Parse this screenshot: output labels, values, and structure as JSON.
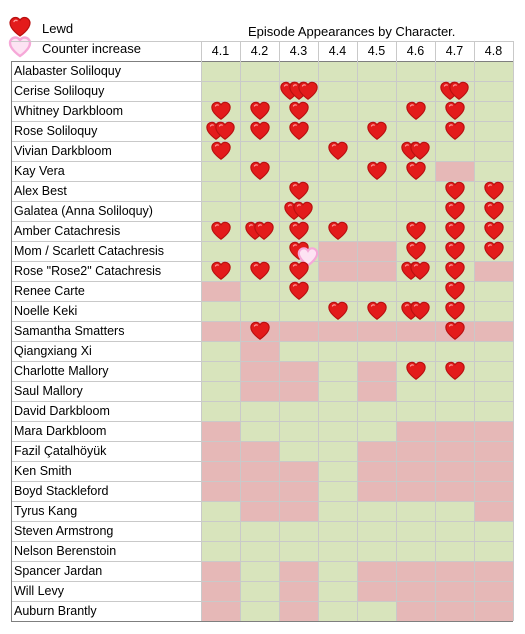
{
  "legend": {
    "items": [
      {
        "label": "Lewd",
        "icon": "red-heart-icon",
        "color": "#e31b1b"
      },
      {
        "label": "Counter increase",
        "icon": "pink-outline-heart-icon",
        "color": "#f6a8d8"
      }
    ]
  },
  "colors": {
    "appeared": "#d8e4bc",
    "absent": "#e6b8b7",
    "header_bg": "#ffffff"
  },
  "chart_data": {
    "type": "table",
    "title": "Episode Appearances by Character.",
    "columns": [
      "4.1",
      "4.2",
      "4.3",
      "4.4",
      "4.5",
      "4.6",
      "4.7",
      "4.8"
    ],
    "rows": [
      {
        "name": "Alabaster Soliloquy",
        "cells": [
          "G",
          "G",
          "G",
          "G",
          "G",
          "G",
          "G",
          "G"
        ],
        "hearts": [
          0,
          0,
          0,
          0,
          0,
          0,
          0,
          0
        ]
      },
      {
        "name": "Cerise Soliloquy",
        "cells": [
          "G",
          "G",
          "G",
          "G",
          "G",
          "G",
          "G",
          "G"
        ],
        "hearts": [
          0,
          0,
          3,
          0,
          0,
          0,
          2,
          0
        ]
      },
      {
        "name": "Whitney Darkbloom",
        "cells": [
          "G",
          "G",
          "G",
          "G",
          "G",
          "G",
          "G",
          "G"
        ],
        "hearts": [
          1,
          1,
          1,
          0,
          0,
          1,
          1,
          0
        ]
      },
      {
        "name": "Rose Soliloquy",
        "cells": [
          "G",
          "G",
          "G",
          "G",
          "G",
          "G",
          "G",
          "G"
        ],
        "hearts": [
          2,
          1,
          1,
          0,
          1,
          0,
          1,
          0
        ]
      },
      {
        "name": "Vivian Darkbloom",
        "cells": [
          "G",
          "G",
          "G",
          "G",
          "G",
          "G",
          "G",
          "G"
        ],
        "hearts": [
          1,
          0,
          0,
          1,
          0,
          2,
          0,
          0
        ]
      },
      {
        "name": "Kay Vera",
        "cells": [
          "G",
          "G",
          "G",
          "G",
          "G",
          "G",
          "R",
          "G"
        ],
        "hearts": [
          0,
          1,
          0,
          0,
          1,
          1,
          0,
          0
        ]
      },
      {
        "name": "Alex Best",
        "cells": [
          "G",
          "G",
          "G",
          "G",
          "G",
          "G",
          "G",
          "G"
        ],
        "hearts": [
          0,
          0,
          1,
          0,
          0,
          0,
          1,
          1
        ]
      },
      {
        "name": "Galatea (Anna Soliloquy)",
        "cells": [
          "G",
          "G",
          "G",
          "G",
          "G",
          "G",
          "G",
          "G"
        ],
        "hearts": [
          0,
          0,
          2,
          0,
          0,
          0,
          1,
          1
        ]
      },
      {
        "name": "Amber Catachresis",
        "cells": [
          "G",
          "G",
          "G",
          "G",
          "G",
          "G",
          "G",
          "G"
        ],
        "hearts": [
          1,
          2,
          1,
          1,
          0,
          1,
          1,
          1
        ]
      },
      {
        "name": "Mom / Scarlett Catachresis",
        "cells": [
          "G",
          "G",
          "G",
          "R",
          "R",
          "G",
          "G",
          "G"
        ],
        "hearts": [
          0,
          0,
          1,
          0,
          0,
          1,
          1,
          1
        ],
        "pink": [
          0,
          0,
          1,
          0,
          0,
          0,
          0,
          0
        ]
      },
      {
        "name": "Rose \"Rose2\" Catachresis",
        "cells": [
          "G",
          "G",
          "G",
          "R",
          "R",
          "G",
          "G",
          "R"
        ],
        "hearts": [
          1,
          1,
          1,
          0,
          0,
          2,
          1,
          0
        ]
      },
      {
        "name": "Renee Carte",
        "cells": [
          "R",
          "G",
          "G",
          "G",
          "G",
          "G",
          "G",
          "G"
        ],
        "hearts": [
          0,
          0,
          1,
          0,
          0,
          0,
          1,
          0
        ]
      },
      {
        "name": "Noelle Keki",
        "cells": [
          "G",
          "G",
          "G",
          "G",
          "G",
          "G",
          "G",
          "G"
        ],
        "hearts": [
          0,
          0,
          0,
          1,
          1,
          2,
          1,
          0
        ]
      },
      {
        "name": "Samantha Smatters",
        "cells": [
          "R",
          "R",
          "R",
          "R",
          "R",
          "R",
          "R",
          "R"
        ],
        "hearts": [
          0,
          1,
          0,
          0,
          0,
          0,
          1,
          0
        ]
      },
      {
        "name": "Qiangxiang Xi",
        "cells": [
          "G",
          "R",
          "G",
          "G",
          "G",
          "G",
          "G",
          "G"
        ],
        "hearts": [
          0,
          0,
          0,
          0,
          0,
          0,
          0,
          0
        ]
      },
      {
        "name": "Charlotte Mallory",
        "cells": [
          "G",
          "R",
          "R",
          "G",
          "R",
          "G",
          "G",
          "G"
        ],
        "hearts": [
          0,
          0,
          0,
          0,
          0,
          1,
          1,
          0
        ]
      },
      {
        "name": "Saul Mallory",
        "cells": [
          "G",
          "R",
          "R",
          "G",
          "R",
          "G",
          "G",
          "G"
        ],
        "hearts": [
          0,
          0,
          0,
          0,
          0,
          0,
          0,
          0
        ]
      },
      {
        "name": "David Darkbloom",
        "cells": [
          "G",
          "G",
          "G",
          "G",
          "G",
          "G",
          "G",
          "G"
        ],
        "hearts": [
          0,
          0,
          0,
          0,
          0,
          0,
          0,
          0
        ]
      },
      {
        "name": "Mara Darkbloom",
        "cells": [
          "R",
          "G",
          "G",
          "G",
          "G",
          "R",
          "R",
          "R"
        ],
        "hearts": [
          0,
          0,
          0,
          0,
          0,
          0,
          0,
          0
        ]
      },
      {
        "name": "Fazil Çatalhöyük",
        "cells": [
          "R",
          "R",
          "G",
          "G",
          "R",
          "R",
          "R",
          "R"
        ],
        "hearts": [
          0,
          0,
          0,
          0,
          0,
          0,
          0,
          0
        ]
      },
      {
        "name": "Ken Smith",
        "cells": [
          "R",
          "R",
          "R",
          "G",
          "R",
          "R",
          "R",
          "R"
        ],
        "hearts": [
          0,
          0,
          0,
          0,
          0,
          0,
          0,
          0
        ]
      },
      {
        "name": "Boyd Stackleford",
        "cells": [
          "R",
          "R",
          "R",
          "G",
          "R",
          "R",
          "R",
          "R"
        ],
        "hearts": [
          0,
          0,
          0,
          0,
          0,
          0,
          0,
          0
        ]
      },
      {
        "name": "Tyrus Kang",
        "cells": [
          "G",
          "R",
          "R",
          "G",
          "G",
          "G",
          "G",
          "R"
        ],
        "hearts": [
          0,
          0,
          0,
          0,
          0,
          0,
          0,
          0
        ]
      },
      {
        "name": "Steven Armstrong",
        "cells": [
          "G",
          "G",
          "G",
          "G",
          "G",
          "G",
          "G",
          "G"
        ],
        "hearts": [
          0,
          0,
          0,
          0,
          0,
          0,
          0,
          0
        ]
      },
      {
        "name": "Nelson Berenstoin",
        "cells": [
          "G",
          "G",
          "G",
          "G",
          "G",
          "G",
          "G",
          "G"
        ],
        "hearts": [
          0,
          0,
          0,
          0,
          0,
          0,
          0,
          0
        ]
      },
      {
        "name": "Spancer Jardan",
        "cells": [
          "R",
          "G",
          "R",
          "G",
          "R",
          "R",
          "R",
          "R"
        ],
        "hearts": [
          0,
          0,
          0,
          0,
          0,
          0,
          0,
          0
        ]
      },
      {
        "name": "Will Levy",
        "cells": [
          "R",
          "G",
          "R",
          "G",
          "R",
          "R",
          "R",
          "R"
        ],
        "hearts": [
          0,
          0,
          0,
          0,
          0,
          0,
          0,
          0
        ]
      },
      {
        "name": "Auburn Brantly",
        "cells": [
          "R",
          "G",
          "R",
          "G",
          "G",
          "R",
          "R",
          "R"
        ],
        "hearts": [
          0,
          0,
          0,
          0,
          0,
          0,
          0,
          0
        ]
      }
    ]
  }
}
